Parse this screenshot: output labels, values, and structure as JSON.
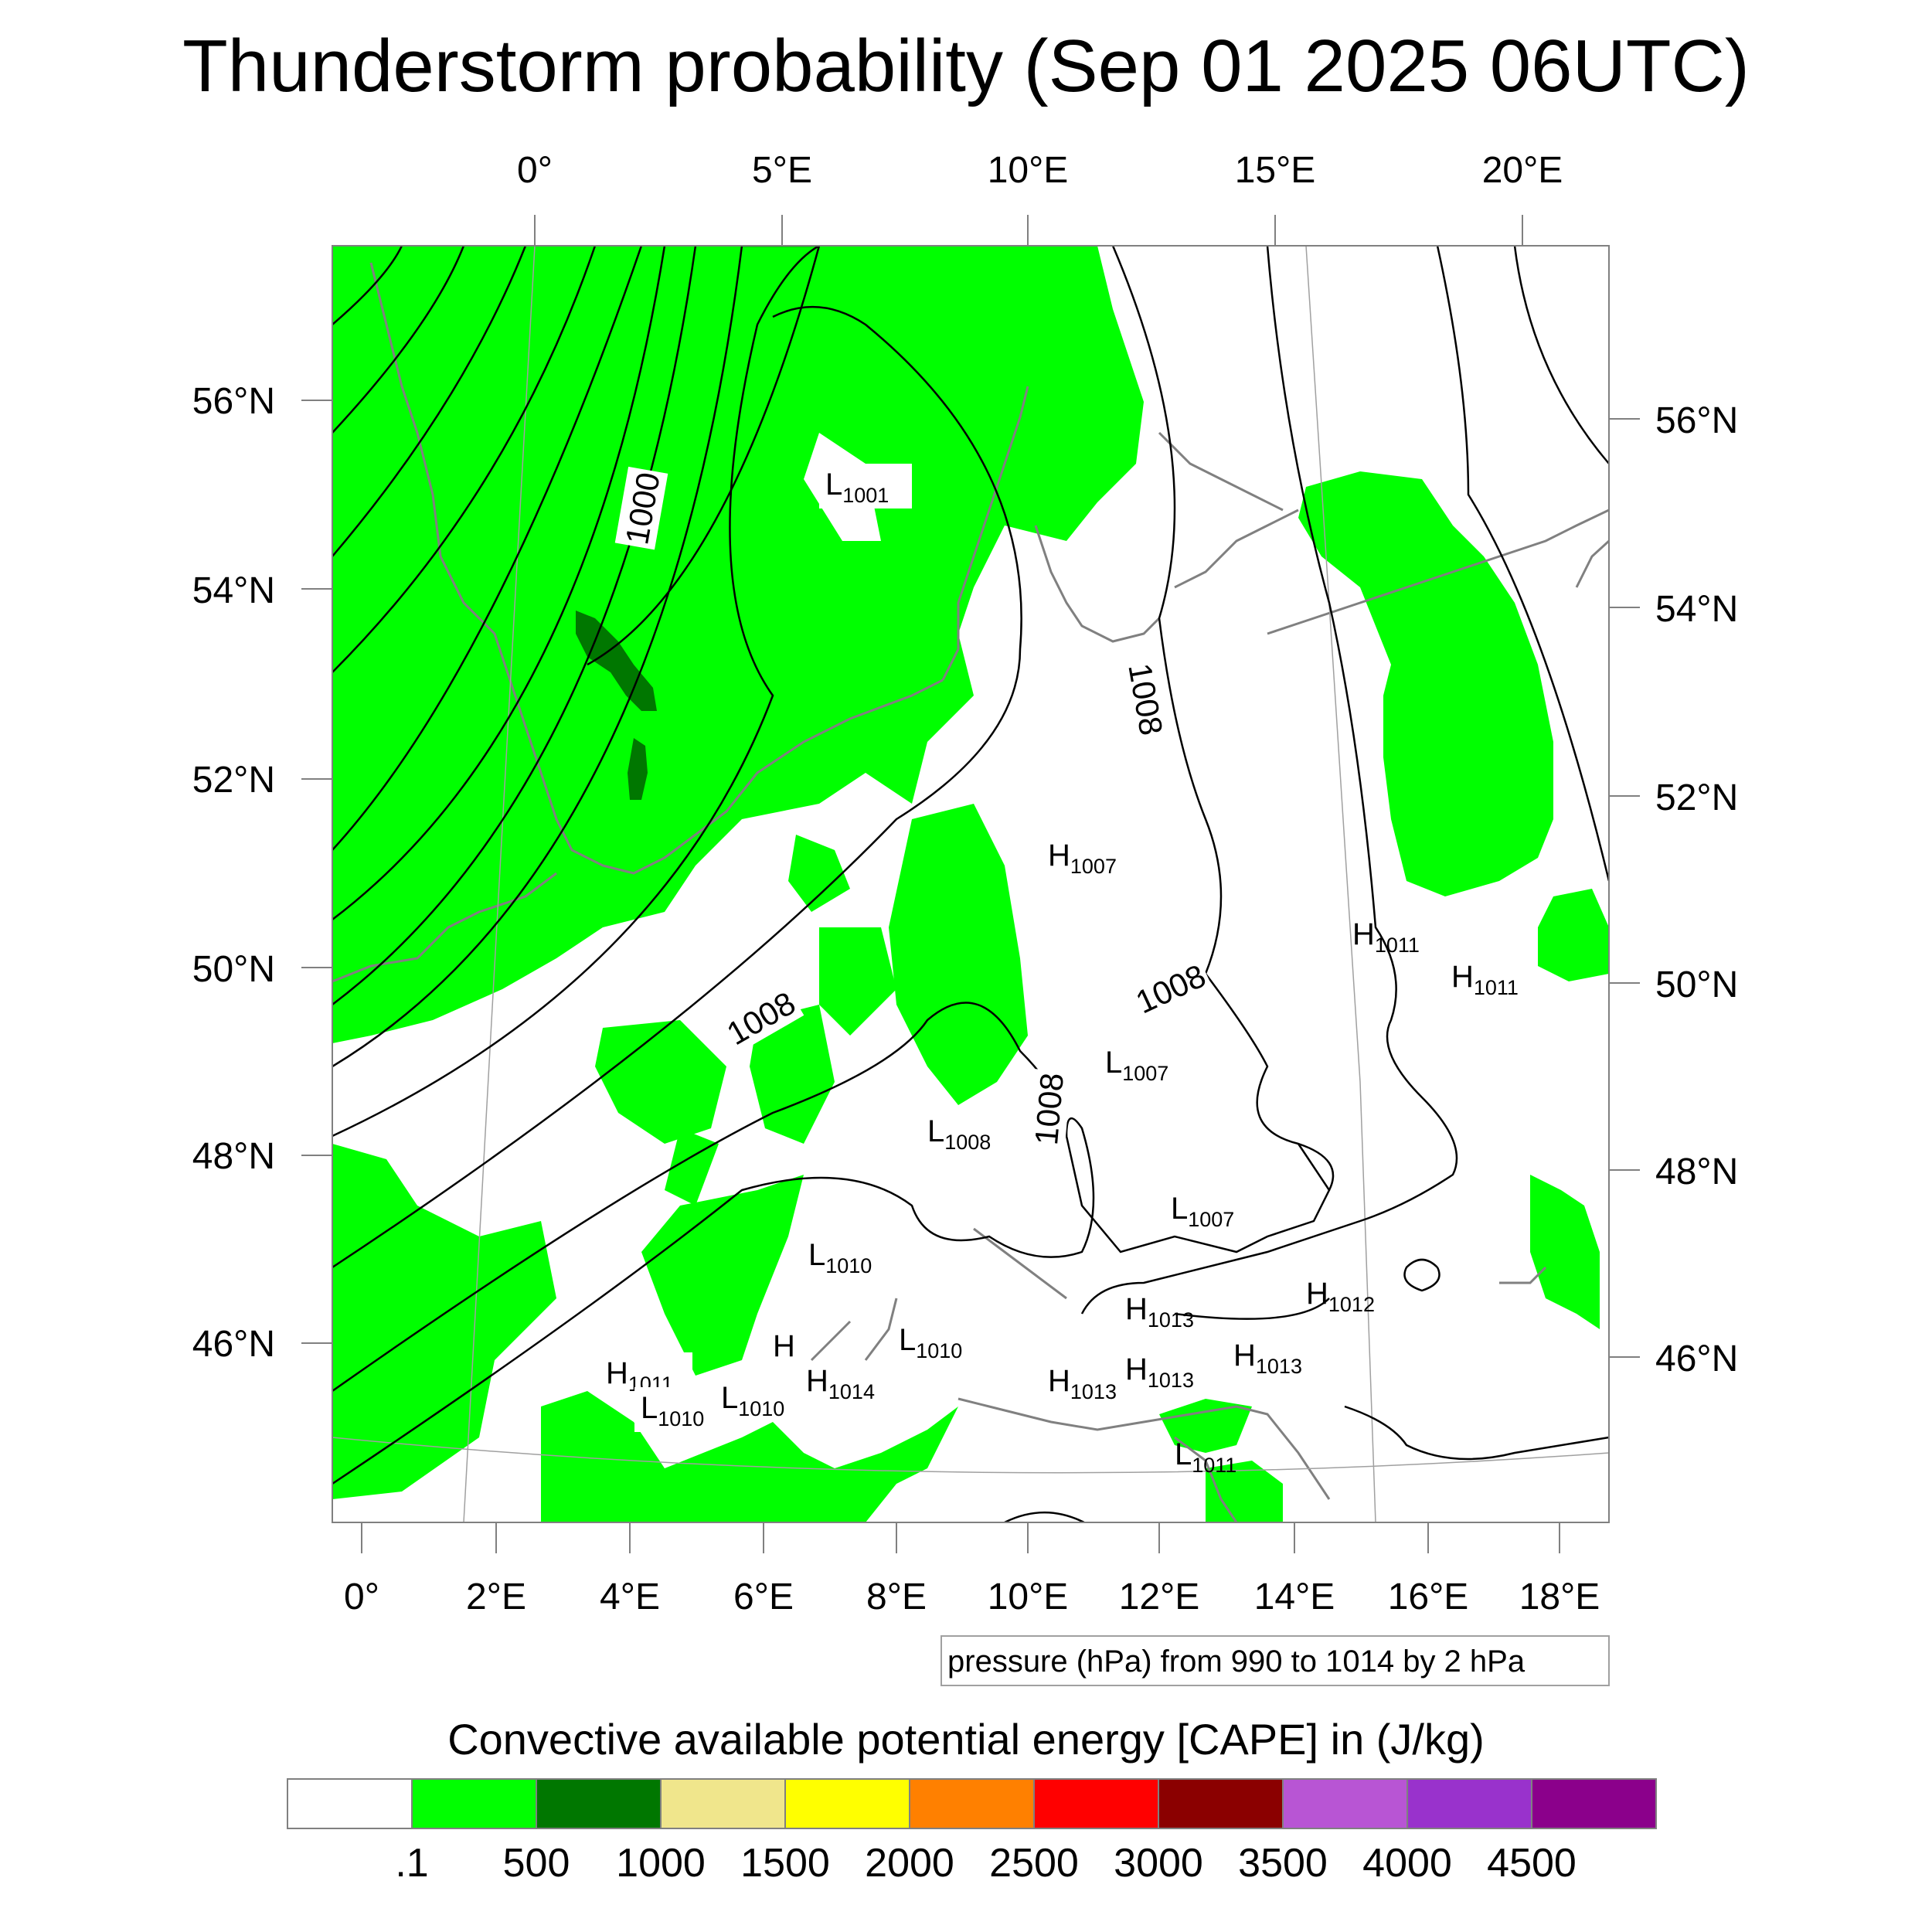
{
  "title": "Thunderstorm probability (Sep 01 2025 06UTC)",
  "colors": {
    "cape_green": "#00ff00",
    "cape_dark_green": "#007700",
    "coast": "#808080",
    "isobar": "#000000"
  },
  "top_axis_labels": [
    "0°",
    "5°E",
    "10°E",
    "15°E",
    "20°E"
  ],
  "bottom_axis_labels": [
    "0°",
    "2°E",
    "4°E",
    "6°E",
    "8°E",
    "10°E",
    "12°E",
    "14°E",
    "16°E",
    "18°E"
  ],
  "left_axis_labels": [
    "56°N",
    "54°N",
    "52°N",
    "50°N",
    "48°N",
    "46°N"
  ],
  "right_axis_labels": [
    "56°N",
    "54°N",
    "52°N",
    "50°N",
    "48°N",
    "46°N"
  ],
  "isobar_labels": [
    "1000",
    "1008",
    "1008",
    "1008",
    "1008"
  ],
  "pressure_centers": [
    {
      "type": "L",
      "value": "1001"
    },
    {
      "type": "H",
      "value": "1007"
    },
    {
      "type": "H",
      "value": "1011"
    },
    {
      "type": "H",
      "value": "1011"
    },
    {
      "type": "L",
      "value": "1007"
    },
    {
      "type": "L",
      "value": "1008"
    },
    {
      "type": "L",
      "value": "1007"
    },
    {
      "type": "L",
      "value": "1010"
    },
    {
      "type": "H",
      "value": "1012"
    },
    {
      "type": "H",
      "value": "1013"
    },
    {
      "type": "L",
      "value": "1010"
    },
    {
      "type": "H",
      "value": "1013"
    },
    {
      "type": "H",
      "value": "1011"
    },
    {
      "type": "L",
      "value": "1010"
    },
    {
      "type": "L",
      "value": "1010"
    },
    {
      "type": "H",
      "value": "1014"
    },
    {
      "type": "H",
      "value": "1013"
    },
    {
      "type": "H",
      "value": "1013"
    },
    {
      "type": "L",
      "value": "1011"
    },
    {
      "type": "H",
      "value": ""
    }
  ],
  "contour_note": "pressure (hPa) from 990 to 1014 by 2 hPa",
  "colorbar": {
    "title": "Convective available potential energy [CAPE] in (J/kg)",
    "colors": [
      "#ffffff",
      "#00ff00",
      "#007700",
      "#f0e68c",
      "#ffff00",
      "#ff8000",
      "#ff0000",
      "#8b0000",
      "#b855d4",
      "#9932cc",
      "#8b008b"
    ],
    "labels": [
      ".1",
      "500",
      "1000",
      "1500",
      "2000",
      "2500",
      "3000",
      "3500",
      "4000",
      "4500"
    ]
  }
}
